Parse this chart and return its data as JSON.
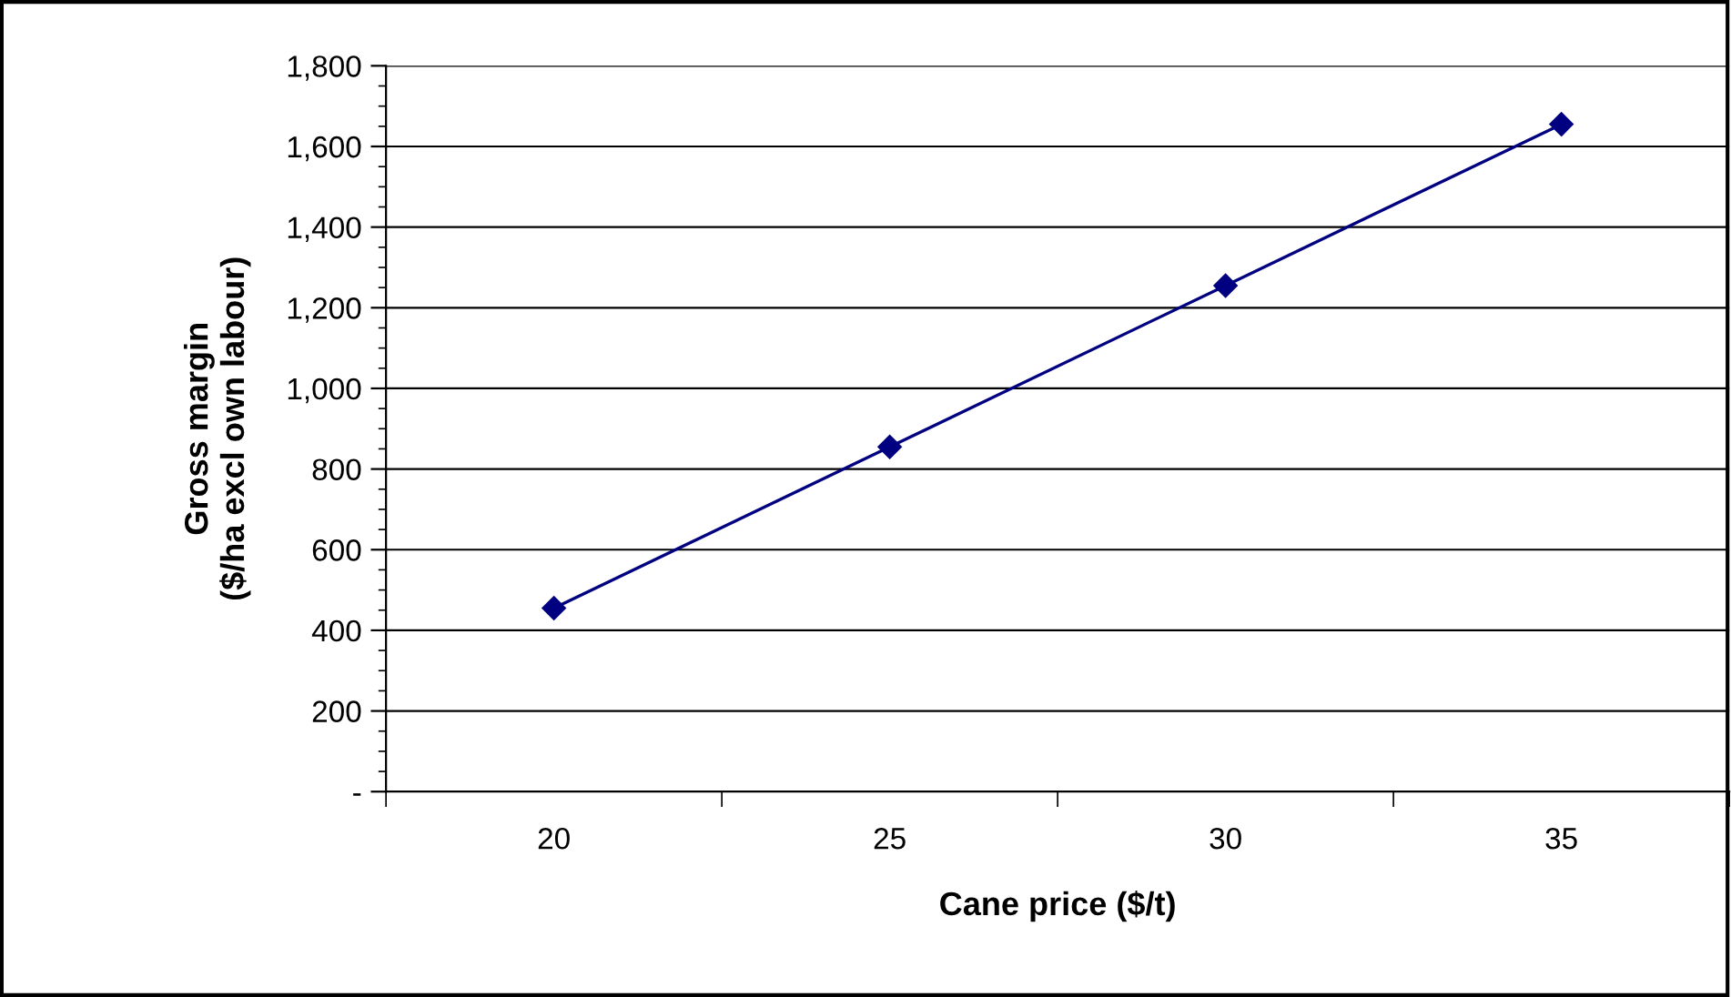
{
  "chart_data": {
    "type": "line",
    "xlabel": "Cane price ($/t)",
    "ylabel": "Gross margin\n($/ha excl own labour)",
    "categories": [
      "20",
      "25",
      "30",
      "35"
    ],
    "series": [
      {
        "color": "#000080",
        "values": [
          455,
          855,
          1255,
          1655
        ]
      }
    ],
    "ylim": [
      0,
      1800
    ],
    "yticks": [
      {
        "value": 0,
        "label": "-"
      },
      {
        "value": 200,
        "label": "200"
      },
      {
        "value": 400,
        "label": "400"
      },
      {
        "value": 600,
        "label": "600"
      },
      {
        "value": 800,
        "label": "800"
      },
      {
        "value": 1000,
        "label": "1,000"
      },
      {
        "value": 1200,
        "label": "1,200"
      },
      {
        "value": 1400,
        "label": "1,400"
      },
      {
        "value": 1600,
        "label": "1,600"
      },
      {
        "value": 1800,
        "label": "1,800"
      }
    ],
    "grid": "y",
    "marker": "diamond",
    "line_style": "solid",
    "legend": false
  }
}
